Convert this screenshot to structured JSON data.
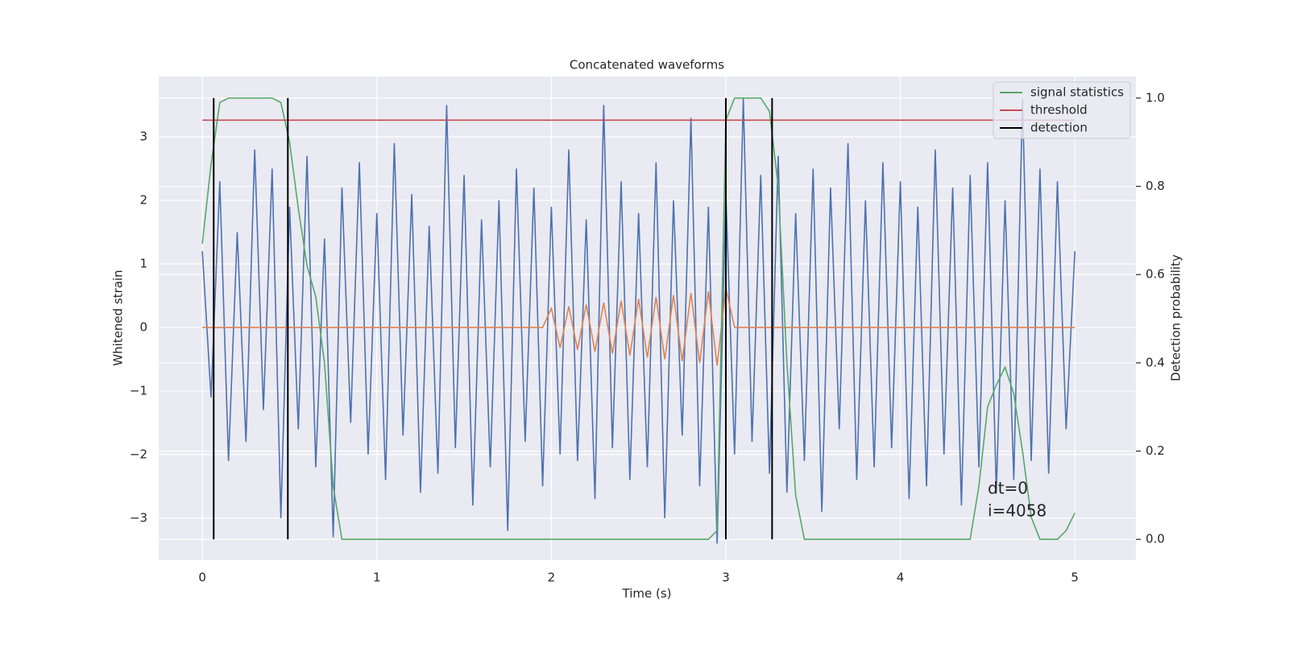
{
  "chart_data": {
    "type": "line",
    "title": "Concatenated waveforms",
    "xlabel": "Time (s)",
    "ylabel": "Whitened strain",
    "y2label": "Detection probability",
    "x": [
      0,
      0.05,
      0.1,
      0.15,
      0.2,
      0.25,
      0.3,
      0.35,
      0.4,
      0.45,
      0.5,
      0.55,
      0.6,
      0.65,
      0.7,
      0.75,
      0.8,
      0.85,
      0.9,
      0.95,
      1,
      1.05,
      1.1,
      1.15,
      1.2,
      1.25,
      1.3,
      1.35,
      1.4,
      1.45,
      1.5,
      1.55,
      1.6,
      1.65,
      1.7,
      1.75,
      1.8,
      1.85,
      1.9,
      1.95,
      2,
      2.05,
      2.1,
      2.15,
      2.2,
      2.25,
      2.3,
      2.35,
      2.4,
      2.45,
      2.5,
      2.55,
      2.6,
      2.65,
      2.7,
      2.75,
      2.8,
      2.85,
      2.9,
      2.95,
      3,
      3.05,
      3.1,
      3.15,
      3.2,
      3.25,
      3.3,
      3.35,
      3.4,
      3.45,
      3.5,
      3.55,
      3.6,
      3.65,
      3.7,
      3.75,
      3.8,
      3.85,
      3.9,
      3.95,
      4,
      4.05,
      4.1,
      4.15,
      4.2,
      4.25,
      4.3,
      4.35,
      4.4,
      4.45,
      4.5,
      4.55,
      4.6,
      4.65,
      4.7,
      4.75,
      4.8,
      4.85,
      4.9,
      4.95,
      5
    ],
    "series": [
      {
        "color": "#4c72b0",
        "values": [
          1.2,
          -1.1,
          2.3,
          -2.1,
          1.5,
          -1.8,
          2.8,
          -1.3,
          2.5,
          -3.0,
          1.9,
          -1.6,
          2.7,
          -2.2,
          1.4,
          -3.3,
          2.2,
          -1.5,
          2.6,
          -2.0,
          1.8,
          -2.4,
          2.9,
          -1.7,
          2.1,
          -2.6,
          1.6,
          -2.3,
          3.5,
          -1.9,
          2.4,
          -2.8,
          1.7,
          -2.2,
          2.0,
          -3.2,
          2.5,
          -1.8,
          2.2,
          -2.5,
          1.9,
          -2.0,
          2.8,
          -2.1,
          1.7,
          -2.7,
          3.5,
          -1.9,
          2.3,
          -2.4,
          1.8,
          -2.2,
          2.6,
          -3.0,
          2.0,
          -1.7,
          3.3,
          -2.5,
          1.9,
          -3.4,
          2.1,
          -2.0,
          3.6,
          -1.8,
          2.4,
          -2.3,
          2.7,
          -2.6,
          1.8,
          -2.1,
          2.5,
          -2.9,
          2.2,
          -1.6,
          2.9,
          -2.4,
          2.0,
          -2.2,
          2.6,
          -1.9,
          2.3,
          -2.7,
          1.9,
          -2.5,
          2.8,
          -2.0,
          2.2,
          -2.8,
          2.4,
          -2.2,
          2.6,
          -2.6,
          2.0,
          -2.4,
          3.6,
          -2.1,
          2.5,
          -2.3,
          2.3,
          -1.6,
          1.2
        ]
      },
      {
        "color": "#dd8452",
        "values": [
          0,
          0,
          0,
          0,
          0,
          0,
          0,
          0,
          0,
          0,
          0,
          0,
          0,
          0,
          0,
          0,
          0,
          0,
          0,
          0,
          0,
          0,
          0,
          0,
          0,
          0,
          0,
          0,
          0,
          0,
          0,
          0,
          0,
          0,
          0,
          0,
          0,
          0,
          0,
          0,
          0.3,
          -0.32,
          0.33,
          -0.35,
          0.36,
          -0.38,
          0.39,
          -0.41,
          0.42,
          -0.44,
          0.45,
          -0.47,
          0.48,
          -0.5,
          0.51,
          -0.53,
          0.54,
          -0.56,
          0.57,
          -0.6,
          0.62,
          0,
          0,
          0,
          0,
          0,
          0,
          0,
          0,
          0,
          0,
          0,
          0,
          0,
          0,
          0,
          0,
          0,
          0,
          0,
          0,
          0,
          0,
          0,
          0,
          0,
          0,
          0,
          0,
          0,
          0,
          0,
          0,
          0,
          0,
          0,
          0,
          0,
          0,
          0,
          0
        ]
      },
      {
        "name": "signal statistics",
        "color": "#55a868",
        "axis": "y2",
        "values": [
          0.67,
          0.85,
          0.99,
          1.0,
          1.0,
          1.0,
          1.0,
          1.0,
          1.0,
          0.99,
          0.9,
          0.75,
          0.62,
          0.55,
          0.4,
          0.12,
          0.0,
          0,
          0,
          0,
          0,
          0,
          0,
          0,
          0,
          0,
          0,
          0,
          0,
          0,
          0,
          0,
          0,
          0,
          0,
          0,
          0,
          0,
          0,
          0,
          0,
          0,
          0,
          0,
          0,
          0,
          0,
          0,
          0,
          0,
          0,
          0,
          0,
          0,
          0,
          0,
          0,
          0,
          0,
          0.02,
          0.95,
          1.0,
          1.0,
          1.0,
          1.0,
          0.97,
          0.8,
          0.4,
          0.1,
          0.0,
          0,
          0,
          0,
          0,
          0,
          0,
          0,
          0,
          0,
          0,
          0,
          0,
          0,
          0,
          0,
          0,
          0,
          0,
          0,
          0.12,
          0.3,
          0.35,
          0.39,
          0.33,
          0.2,
          0.05,
          0,
          0,
          0,
          0.02,
          0.06
        ]
      }
    ],
    "threshold": {
      "name": "threshold",
      "color": "#c44e52",
      "value": 0.95
    },
    "detection": {
      "name": "detection",
      "color": "#000000",
      "x": [
        0.065,
        0.49,
        3.0,
        3.265
      ]
    },
    "annotations": [
      "dt=0",
      "i=4058"
    ],
    "xlim": [
      -0.25,
      5.35
    ],
    "xticks": [
      0,
      1,
      2,
      3,
      4,
      5
    ],
    "ylim": [
      -3.66,
      3.95
    ],
    "yticks": [
      {
        "value": -3,
        "label": "−3"
      },
      {
        "value": -2,
        "label": "−2"
      },
      {
        "value": -1,
        "label": "−1"
      },
      0,
      1,
      2,
      3
    ],
    "y2lim": [
      -0.047,
      1.049
    ],
    "y2ticks": [
      {
        "value": 0,
        "label": "0.0"
      },
      0.2,
      0.4,
      0.6,
      0.8,
      {
        "value": 1,
        "label": "1.0"
      }
    ],
    "grid": true,
    "legend": "upper right"
  }
}
